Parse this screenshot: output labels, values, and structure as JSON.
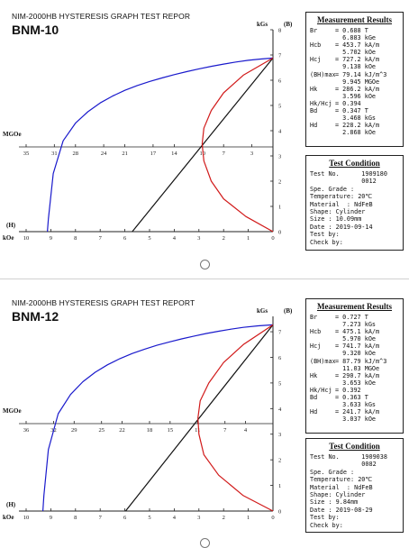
{
  "panels": [
    {
      "header": "NIM-2000HB HYSTERESIS GRAPH TEST REPOR",
      "model": "BNM-10",
      "measurement": {
        "title": "Measurement Results",
        "rows": [
          {
            "label": "Br",
            "lines": [
              "= 0.688 T",
              "6.883 kGe"
            ]
          },
          {
            "label": "Hcb",
            "lines": [
              "= 453.7 kA/m",
              "5.702 kOe"
            ]
          },
          {
            "label": "Hcj",
            "lines": [
              "= 727.2 kA/m",
              "9.138 kOe"
            ]
          },
          {
            "label": "(BH)max",
            "lines": [
              "= 79.14 kJ/m^3",
              "9.945 MGOe"
            ]
          },
          {
            "label": "Hk",
            "lines": [
              "= 286.2 kA/m",
              "3.596 kOe"
            ]
          },
          {
            "label": "Hk/Hcj",
            "lines": [
              "= 0.394"
            ]
          },
          {
            "label": "Bd",
            "lines": [
              "= 0.347 T",
              "3.468 kGs"
            ]
          },
          {
            "label": "Hd",
            "lines": [
              "= 228.2 kA/m",
              "2.868 kOe"
            ]
          }
        ]
      },
      "condition": {
        "title": "Test Condition",
        "lines": [
          "Test No.      1909180",
          "              0012",
          "Spe. Grade :",
          "Temperature: 20℃",
          "Material  : NdFeB",
          "Shape: Cylinder",
          "Size : 10.09mm",
          "Date : 2019-09-14",
          "Test by:",
          "Check by:"
        ]
      }
    },
    {
      "header": "NIM-2000HB HYSTERESIS GRAPH TEST REPORT",
      "model": "BNM-12",
      "measurement": {
        "title": "Measurement Results",
        "rows": [
          {
            "label": "Br",
            "lines": [
              "= 0.727 T",
              "7.273 kGs"
            ]
          },
          {
            "label": "Hcb",
            "lines": [
              "= 475.1 kA/m",
              "5.970 kOe"
            ]
          },
          {
            "label": "Hcj",
            "lines": [
              "= 741.7 kA/m",
              "9.320 kOe"
            ]
          },
          {
            "label": "(BH)max",
            "lines": [
              "= 87.79 kJ/m^3",
              "11.03 MGOe"
            ]
          },
          {
            "label": "Hk",
            "lines": [
              "= 290.7 kA/m",
              "3.653 kOe"
            ]
          },
          {
            "label": "Hk/Hcj",
            "lines": [
              "= 0.392"
            ]
          },
          {
            "label": "Bd",
            "lines": [
              "= 0.363 T",
              "3.633 kGs"
            ]
          },
          {
            "label": "Hd",
            "lines": [
              "= 241.7 kA/m",
              "3.037 kOe"
            ]
          }
        ]
      },
      "condition": {
        "title": "Test Condition",
        "lines": [
          "Test No.      1909038",
          "              0082",
          "Spe. Grade :",
          "Temperature: 20℃",
          "Material  : NdFeB",
          "Shape: Cylinder",
          "Size : 9.84mm",
          "Date : 2019-08-29",
          "Test by:",
          "Check by:"
        ]
      }
    }
  ],
  "chart_data": [
    {
      "type": "line",
      "x_unit_label": "kOe",
      "x_label": "(H)",
      "y_unit_label": "kGs",
      "y_label": "(B)",
      "energy_axis_label": "MGOe",
      "x_ticks": [
        "10",
        "9",
        "8",
        "7",
        "6",
        "5",
        "4",
        "3",
        "2",
        "1",
        "0"
      ],
      "y_ticks": [
        "0",
        "1",
        "2",
        "3",
        "4",
        "5",
        "6",
        "7",
        "8"
      ],
      "energy_ticks": [
        "35",
        "31",
        "28",
        "24",
        "21",
        "17",
        "14",
        "10",
        "7",
        "3"
      ],
      "xlim": [
        -10,
        0
      ],
      "ylim": [
        0,
        8
      ],
      "energy_max": 35,
      "series": [
        {
          "color": "#1a1acc",
          "x": [
            -9.14,
            -9.1,
            -8.9,
            -8.5,
            -8.0,
            -7.5,
            -7.0,
            -6.5,
            -6.0,
            -5.5,
            -5.0,
            -4.5,
            -4.0,
            -3.5,
            -3.0,
            -2.5,
            -2.0,
            -1.5,
            -1.0,
            -0.5,
            0
          ],
          "y": [
            0,
            0.5,
            2.3,
            3.6,
            4.3,
            4.75,
            5.1,
            5.37,
            5.6,
            5.79,
            5.95,
            6.09,
            6.22,
            6.34,
            6.45,
            6.55,
            6.64,
            6.72,
            6.79,
            6.84,
            6.88
          ]
        },
        {
          "color": "#111111",
          "x": [
            -5.7,
            0
          ],
          "y": [
            0,
            6.88
          ]
        },
        {
          "color": "#d11a1a",
          "points": [
            [
              0,
              0
            ],
            [
              -1.1,
              0.6
            ],
            [
              -2.0,
              1.3
            ],
            [
              -2.5,
              2.0
            ],
            [
              -2.8,
              2.8
            ],
            [
              -2.87,
              3.47
            ],
            [
              -2.8,
              4.1
            ],
            [
              -2.5,
              4.8
            ],
            [
              -2.0,
              5.5
            ],
            [
              -1.2,
              6.2
            ],
            [
              0,
              6.88
            ]
          ]
        }
      ]
    },
    {
      "type": "line",
      "x_unit_label": "kOe",
      "x_label": "(H)",
      "y_unit_label": "kGs",
      "y_label": "(B)",
      "energy_axis_label": "MGOe",
      "x_ticks": [
        "10",
        "9",
        "8",
        "7",
        "6",
        "5",
        "4",
        "3",
        "2",
        "1",
        "0"
      ],
      "y_ticks": [
        "0",
        "1",
        "2",
        "3",
        "4",
        "5",
        "6",
        "7"
      ],
      "energy_ticks": [
        "36",
        "32",
        "29",
        "25",
        "22",
        "18",
        "15",
        "11",
        "7",
        "4"
      ],
      "xlim": [
        -10,
        0
      ],
      "ylim": [
        0,
        7.6
      ],
      "energy_max": 36,
      "series": [
        {
          "color": "#1a1acc",
          "x": [
            -9.32,
            -9.28,
            -9.1,
            -8.7,
            -8.2,
            -7.7,
            -7.2,
            -6.7,
            -6.2,
            -5.7,
            -5.2,
            -4.7,
            -4.2,
            -3.7,
            -3.2,
            -2.7,
            -2.2,
            -1.7,
            -1.2,
            -0.6,
            0
          ],
          "y": [
            0,
            0.6,
            2.4,
            3.8,
            4.55,
            5.05,
            5.42,
            5.71,
            5.95,
            6.15,
            6.32,
            6.47,
            6.6,
            6.72,
            6.83,
            6.93,
            7.02,
            7.1,
            7.17,
            7.23,
            7.27
          ]
        },
        {
          "color": "#111111",
          "x": [
            -5.97,
            0
          ],
          "y": [
            0,
            7.27
          ]
        },
        {
          "color": "#d11a1a",
          "points": [
            [
              0,
              0
            ],
            [
              -1.2,
              0.6
            ],
            [
              -2.2,
              1.4
            ],
            [
              -2.8,
              2.2
            ],
            [
              -3.0,
              3.0
            ],
            [
              -3.04,
              3.63
            ],
            [
              -2.95,
              4.3
            ],
            [
              -2.6,
              5.0
            ],
            [
              -2.0,
              5.8
            ],
            [
              -1.2,
              6.5
            ],
            [
              0,
              7.27
            ]
          ]
        }
      ]
    }
  ]
}
